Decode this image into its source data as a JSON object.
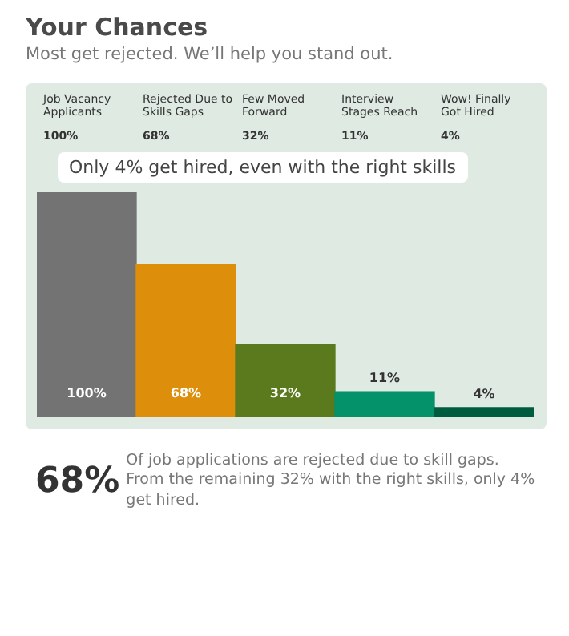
{
  "chart_data": {
    "type": "bar",
    "title": "Your Chances",
    "subtitle": "Most get rejected. We’ll help you stand out.",
    "categories": [
      "Job Vacancy Applicants",
      "Rejected Due to Skills Gaps",
      "Few Moved Forward",
      "Interview Stages Reach",
      "Wow! Finally Got Hired"
    ],
    "values": [
      100,
      68,
      32,
      11,
      4
    ],
    "colors": [
      "#737373",
      "#dd8e0a",
      "#5b7a1e",
      "#03926a",
      "#005c3e"
    ],
    "value_labels": [
      "100%",
      "68%",
      "32%",
      "11%",
      "4%"
    ],
    "annotations": [
      "Only 4% get hired, even with the right skills",
      "68%",
      "Of job applications are rejected due to skill gaps. From the remaining 32% with the right skills, only 4% get hired."
    ],
    "legend": false
  }
}
